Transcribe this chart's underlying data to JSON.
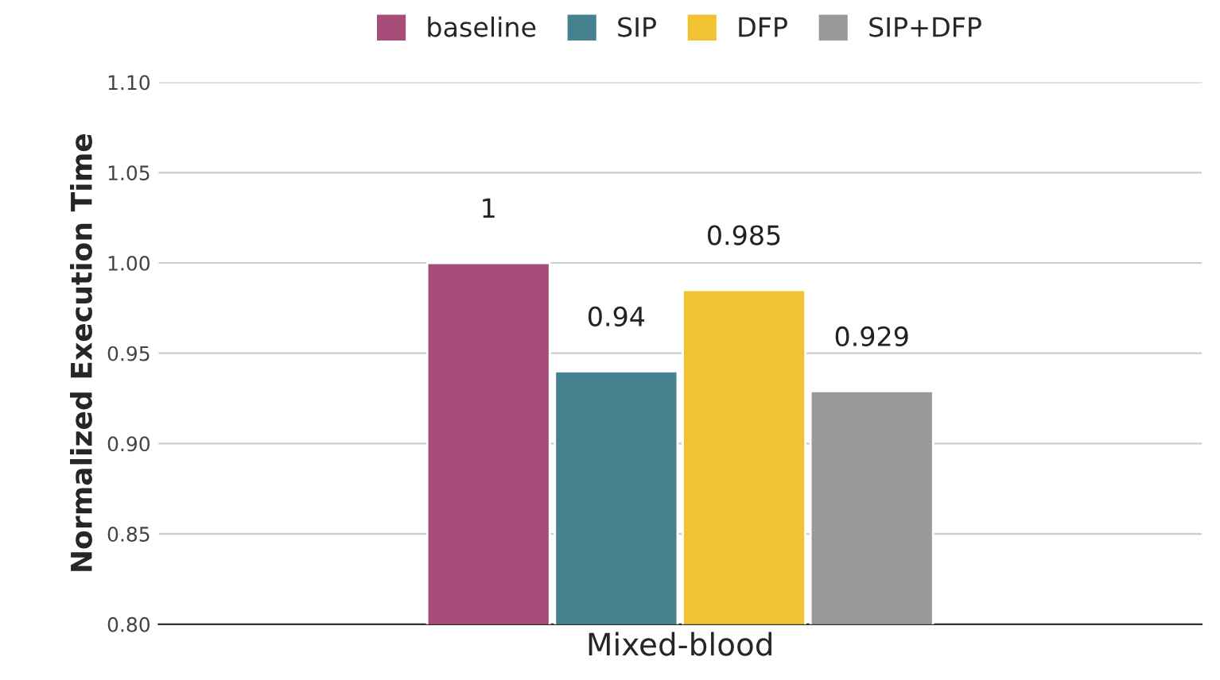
{
  "chart_data": {
    "type": "bar",
    "ylabel": "Normalized Execution Time",
    "categories": [
      "Mixed-blood"
    ],
    "series": [
      {
        "name": "baseline",
        "color": "#a64d79",
        "values": [
          1
        ]
      },
      {
        "name": "SIP",
        "color": "#45818e",
        "values": [
          0.94
        ]
      },
      {
        "name": "DFP",
        "color": "#f1c232",
        "values": [
          0.985
        ]
      },
      {
        "name": "SIP+DFP",
        "color": "#999999",
        "values": [
          0.929
        ]
      }
    ],
    "ylim": [
      0.8,
      1.1
    ],
    "yticks": [
      {
        "value": 0.8,
        "label": "0.80"
      },
      {
        "value": 0.85,
        "label": "0.85"
      },
      {
        "value": 0.9,
        "label": "0.90"
      },
      {
        "value": 0.95,
        "label": "0.95"
      },
      {
        "value": 1.0,
        "label": "1.00"
      },
      {
        "value": 1.05,
        "label": "1.05"
      },
      {
        "value": 1.1,
        "label": "1.10"
      }
    ],
    "grid": "y",
    "legend": "top",
    "data_labels": true
  }
}
